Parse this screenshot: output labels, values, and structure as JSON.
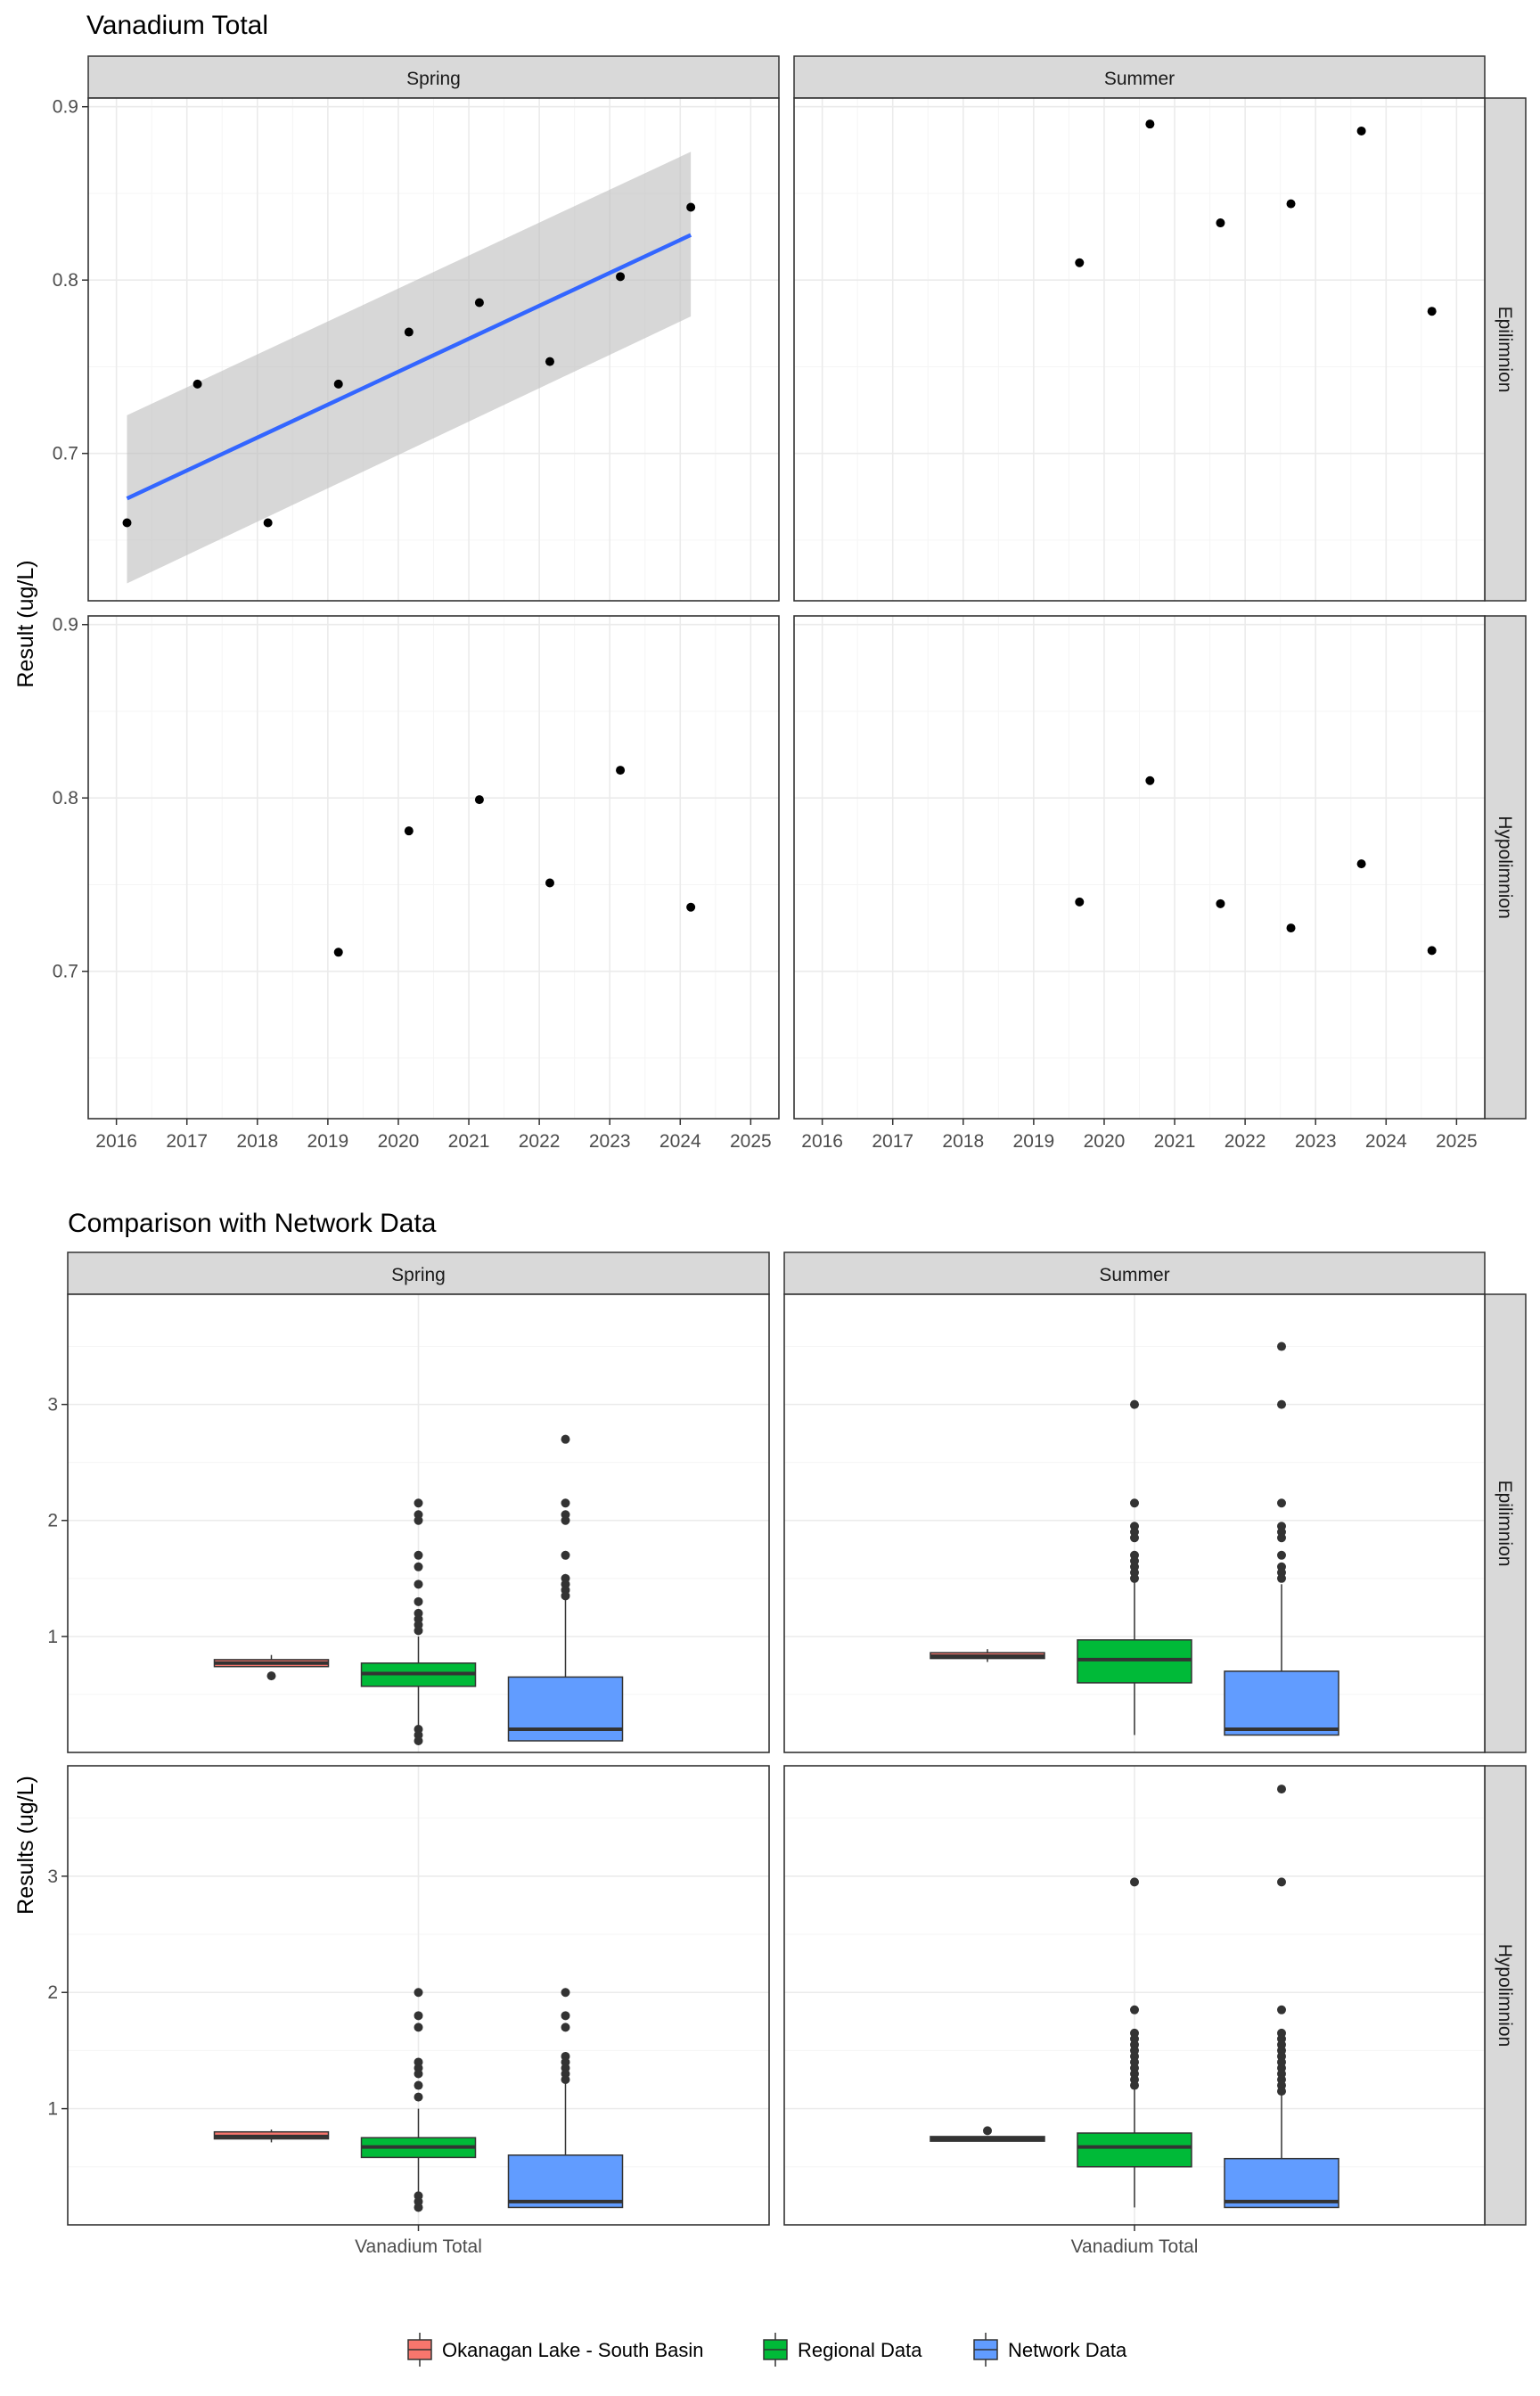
{
  "colors": {
    "strip_bg": "#d9d9d9",
    "grid_major": "#ebebeb",
    "grid_minor": "#f5f5f5",
    "panel_border": "#333333",
    "point": "#000000",
    "trend_line": "#3366ff",
    "ribbon": "#bebebe",
    "box_okanagan": "#f8766d",
    "box_regional": "#00ba38",
    "box_network": "#619cff"
  },
  "chart_data": [
    {
      "type": "scatter",
      "title": "Vanadium Total",
      "ylabel": "Result (ug/L)",
      "xlabel": "",
      "columns": [
        "Spring",
        "Summer"
      ],
      "rows": [
        "Epilimnion",
        "Hypolimnion"
      ],
      "x_ticks": [
        "2016",
        "2017",
        "2018",
        "2019",
        "2020",
        "2021",
        "2022",
        "2023",
        "2024",
        "2025"
      ],
      "y_ticks": [
        "0.7",
        "0.8",
        "0.9"
      ],
      "xlim": [
        2015.6,
        2025.4
      ],
      "ylim": [
        0.615,
        0.905
      ],
      "grid": true,
      "panels": [
        {
          "column": "Spring",
          "row": "Epilimnion",
          "points": [
            [
              2016.15,
              0.66
            ],
            [
              2017.15,
              0.74
            ],
            [
              2018.15,
              0.66
            ],
            [
              2019.15,
              0.74
            ],
            [
              2020.15,
              0.77
            ],
            [
              2021.15,
              0.787
            ],
            [
              2022.15,
              0.753
            ],
            [
              2023.15,
              0.802
            ],
            [
              2024.15,
              0.842
            ]
          ],
          "trend": {
            "x": [
              2016.15,
              2024.15
            ],
            "y": [
              0.674,
              0.826
            ],
            "lower": [
              0.625,
              0.779
            ],
            "upper": [
              0.722,
              0.874
            ]
          }
        },
        {
          "column": "Summer",
          "row": "Epilimnion",
          "points": [
            [
              2019.65,
              0.81
            ],
            [
              2020.65,
              0.89
            ],
            [
              2021.65,
              0.833
            ],
            [
              2022.65,
              0.844
            ],
            [
              2023.65,
              0.886
            ],
            [
              2024.65,
              0.782
            ]
          ]
        },
        {
          "column": "Spring",
          "row": "Hypolimnion",
          "points": [
            [
              2019.15,
              0.711
            ],
            [
              2020.15,
              0.781
            ],
            [
              2021.15,
              0.799
            ],
            [
              2022.15,
              0.751
            ],
            [
              2023.15,
              0.816
            ],
            [
              2024.15,
              0.737
            ]
          ]
        },
        {
          "column": "Summer",
          "row": "Hypolimnion",
          "points": [
            [
              2019.65,
              0.74
            ],
            [
              2020.65,
              0.81
            ],
            [
              2021.65,
              0.739
            ],
            [
              2022.65,
              0.725
            ],
            [
              2023.65,
              0.762
            ],
            [
              2024.65,
              0.712
            ]
          ]
        }
      ]
    },
    {
      "type": "box",
      "title": "Comparison with Network Data",
      "ylabel": "Results (ug/L)",
      "xlabel": "",
      "category": "Vanadium Total",
      "columns": [
        "Spring",
        "Summer"
      ],
      "rows": [
        "Epilimnion",
        "Hypolimnion"
      ],
      "y_ticks": [
        "1",
        "2",
        "3"
      ],
      "ylim": [
        0.0,
        3.95
      ],
      "grid": true,
      "legend_position": "bottom",
      "series": [
        {
          "name": "Okanagan Lake - South Basin",
          "color": "#f8766d"
        },
        {
          "name": "Regional Data",
          "color": "#00ba38"
        },
        {
          "name": "Network Data",
          "color": "#619cff"
        }
      ],
      "panels": [
        {
          "column": "Spring",
          "row": "Epilimnion",
          "boxes": [
            {
              "series": "Okanagan Lake - South Basin",
              "min": 0.74,
              "q1": 0.74,
              "median": 0.77,
              "q3": 0.8,
              "max": 0.84,
              "outliers": [
                0.66
              ]
            },
            {
              "series": "Regional Data",
              "min": 0.22,
              "q1": 0.57,
              "median": 0.68,
              "q3": 0.77,
              "max": 1.0,
              "outliers": [
                2.15,
                2.05,
                2.0,
                1.7,
                1.6,
                1.45,
                1.3,
                1.2,
                1.15,
                1.1,
                1.05,
                0.2,
                0.15,
                0.1
              ]
            },
            {
              "series": "Network Data",
              "min": 0.1,
              "q1": 0.1,
              "median": 0.2,
              "q3": 0.65,
              "max": 1.35,
              "outliers": [
                2.7,
                2.15,
                2.05,
                2.0,
                1.7,
                1.5,
                1.45,
                1.4,
                1.35
              ]
            }
          ]
        },
        {
          "column": "Summer",
          "row": "Epilimnion",
          "boxes": [
            {
              "series": "Okanagan Lake - South Basin",
              "min": 0.78,
              "q1": 0.81,
              "median": 0.83,
              "q3": 0.86,
              "max": 0.89,
              "outliers": []
            },
            {
              "series": "Regional Data",
              "min": 0.15,
              "q1": 0.6,
              "median": 0.8,
              "q3": 0.97,
              "max": 1.5,
              "outliers": [
                3.0,
                2.15,
                1.95,
                1.9,
                1.85,
                1.7,
                1.65,
                1.6,
                1.55,
                1.5
              ]
            },
            {
              "series": "Network Data",
              "min": 0.15,
              "q1": 0.15,
              "median": 0.2,
              "q3": 0.7,
              "max": 1.45,
              "outliers": [
                3.5,
                3.0,
                2.15,
                1.95,
                1.9,
                1.85,
                1.7,
                1.6,
                1.55,
                1.5
              ]
            }
          ]
        },
        {
          "column": "Spring",
          "row": "Hypolimnion",
          "boxes": [
            {
              "series": "Okanagan Lake - South Basin",
              "min": 0.71,
              "q1": 0.74,
              "median": 0.76,
              "q3": 0.8,
              "max": 0.82,
              "outliers": []
            },
            {
              "series": "Regional Data",
              "min": 0.25,
              "q1": 0.58,
              "median": 0.67,
              "q3": 0.75,
              "max": 1.0,
              "outliers": [
                2.0,
                1.8,
                1.7,
                1.4,
                1.35,
                1.3,
                1.2,
                1.1,
                0.25,
                0.2,
                0.15
              ]
            },
            {
              "series": "Network Data",
              "min": 0.15,
              "q1": 0.15,
              "median": 0.2,
              "q3": 0.6,
              "max": 1.25,
              "outliers": [
                2.0,
                1.8,
                1.7,
                1.45,
                1.4,
                1.35,
                1.3,
                1.25
              ]
            }
          ]
        },
        {
          "column": "Summer",
          "row": "Hypolimnion",
          "boxes": [
            {
              "series": "Okanagan Lake - South Basin",
              "min": 0.72,
              "q1": 0.72,
              "median": 0.74,
              "q3": 0.76,
              "max": 0.76,
              "outliers": [
                0.81
              ]
            },
            {
              "series": "Regional Data",
              "min": 0.15,
              "q1": 0.5,
              "median": 0.67,
              "q3": 0.79,
              "max": 1.2,
              "outliers": [
                2.95,
                1.85,
                1.65,
                1.6,
                1.55,
                1.5,
                1.45,
                1.4,
                1.35,
                1.3,
                1.25,
                1.2
              ]
            },
            {
              "series": "Network Data",
              "min": 0.15,
              "q1": 0.15,
              "median": 0.2,
              "q3": 0.57,
              "max": 1.15,
              "outliers": [
                3.75,
                2.95,
                1.85,
                1.65,
                1.6,
                1.55,
                1.5,
                1.45,
                1.4,
                1.35,
                1.3,
                1.25,
                1.2,
                1.15
              ]
            }
          ]
        }
      ]
    }
  ]
}
